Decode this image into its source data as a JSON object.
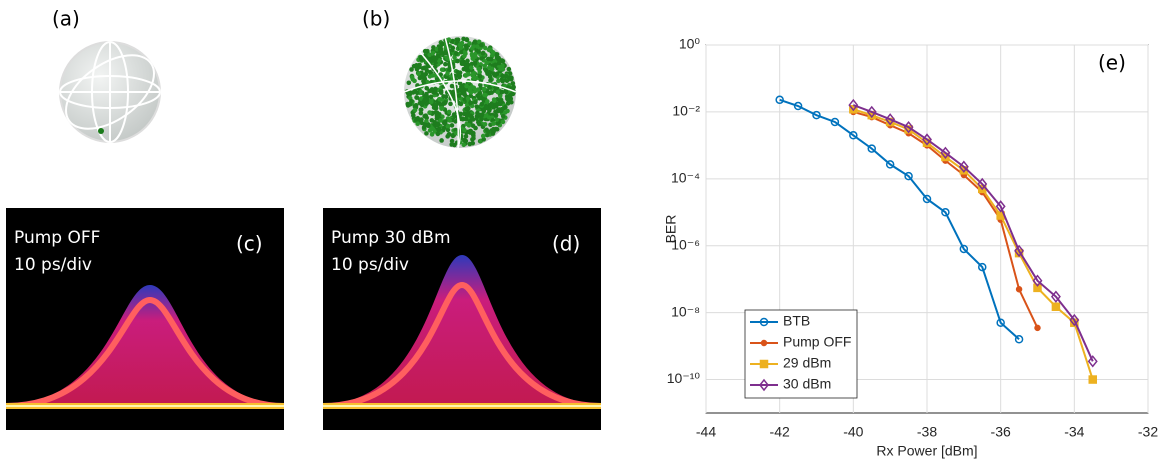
{
  "panels": {
    "a": {
      "label": "(a)"
    },
    "b": {
      "label": "(b)"
    },
    "c": {
      "label": "(c)",
      "lines": [
        "Pump OFF",
        "10 ps/div"
      ]
    },
    "d": {
      "label": "(d)",
      "lines": [
        "Pump 30 dBm",
        "10 ps/div"
      ]
    }
  },
  "chart_data": {
    "type": "line",
    "annotation": "(e)",
    "x_label": "Rx Power [dBm]",
    "y_label": "BER",
    "xlim": [
      -44,
      -32
    ],
    "xticks": [
      -44,
      -42,
      -40,
      -38,
      -36,
      -34,
      -32
    ],
    "ylim": [
      1e-11,
      1
    ],
    "log_y": true,
    "grid": true,
    "legend": "lower left",
    "yticks": [
      {
        "value": 1,
        "label": "10⁰"
      },
      {
        "value": 0.01,
        "label": "10⁻²"
      },
      {
        "value": 0.0001,
        "label": "10⁻⁴"
      },
      {
        "value": 1e-06,
        "label": "10⁻⁶"
      },
      {
        "value": 1e-08,
        "label": "10⁻⁸"
      },
      {
        "value": 1e-10,
        "label": "10⁻¹⁰"
      }
    ],
    "series": [
      {
        "name": "BTB",
        "color": "#0072bd",
        "marker": "open-circle",
        "x": [
          -42,
          -41.5,
          -41,
          -40.5,
          -40,
          -39.5,
          -39,
          -38.5,
          -38,
          -37.5,
          -37,
          -36.5,
          -36,
          -35.5
        ],
        "values": [
          0.023,
          0.015,
          0.008,
          0.005,
          0.002,
          0.0008,
          0.00027,
          0.00012,
          2.5e-05,
          1e-05,
          8e-07,
          2.3e-07,
          5e-09,
          1.6e-09
        ]
      },
      {
        "name": "Pump OFF",
        "color": "#d95319",
        "marker": "dot",
        "x": [
          -40,
          -39.5,
          -39,
          -38.5,
          -38,
          -37.5,
          -37,
          -36.5,
          -36,
          -35.5,
          -35
        ],
        "values": [
          0.01,
          0.007,
          0.004,
          0.0023,
          0.001,
          0.00035,
          0.00013,
          4e-05,
          6e-06,
          5e-08,
          3.5e-09
        ]
      },
      {
        "name": "29 dBm",
        "color": "#edb120",
        "marker": "square",
        "x": [
          -40,
          -39.5,
          -39,
          -38.5,
          -38,
          -37.5,
          -37,
          -36.5,
          -36,
          -35.5,
          -35,
          -34.5,
          -34,
          -33.5
        ],
        "values": [
          0.012,
          0.008,
          0.005,
          0.003,
          0.0012,
          0.00045,
          0.00018,
          5e-05,
          8e-06,
          6e-07,
          5.5e-08,
          1.5e-08,
          5e-09,
          1e-10
        ]
      },
      {
        "name": "30 dBm",
        "color": "#7e2f8e",
        "marker": "diamond",
        "x": [
          -40,
          -39.5,
          -39,
          -38.5,
          -38,
          -37.5,
          -37,
          -36.5,
          -36,
          -35.5,
          -35,
          -34.5,
          -34,
          -33.5
        ],
        "values": [
          0.016,
          0.01,
          0.006,
          0.0035,
          0.0015,
          0.0006,
          0.00023,
          7e-05,
          1.5e-05,
          7e-07,
          9e-08,
          3e-08,
          6e-09,
          3.5e-10
        ]
      }
    ]
  }
}
